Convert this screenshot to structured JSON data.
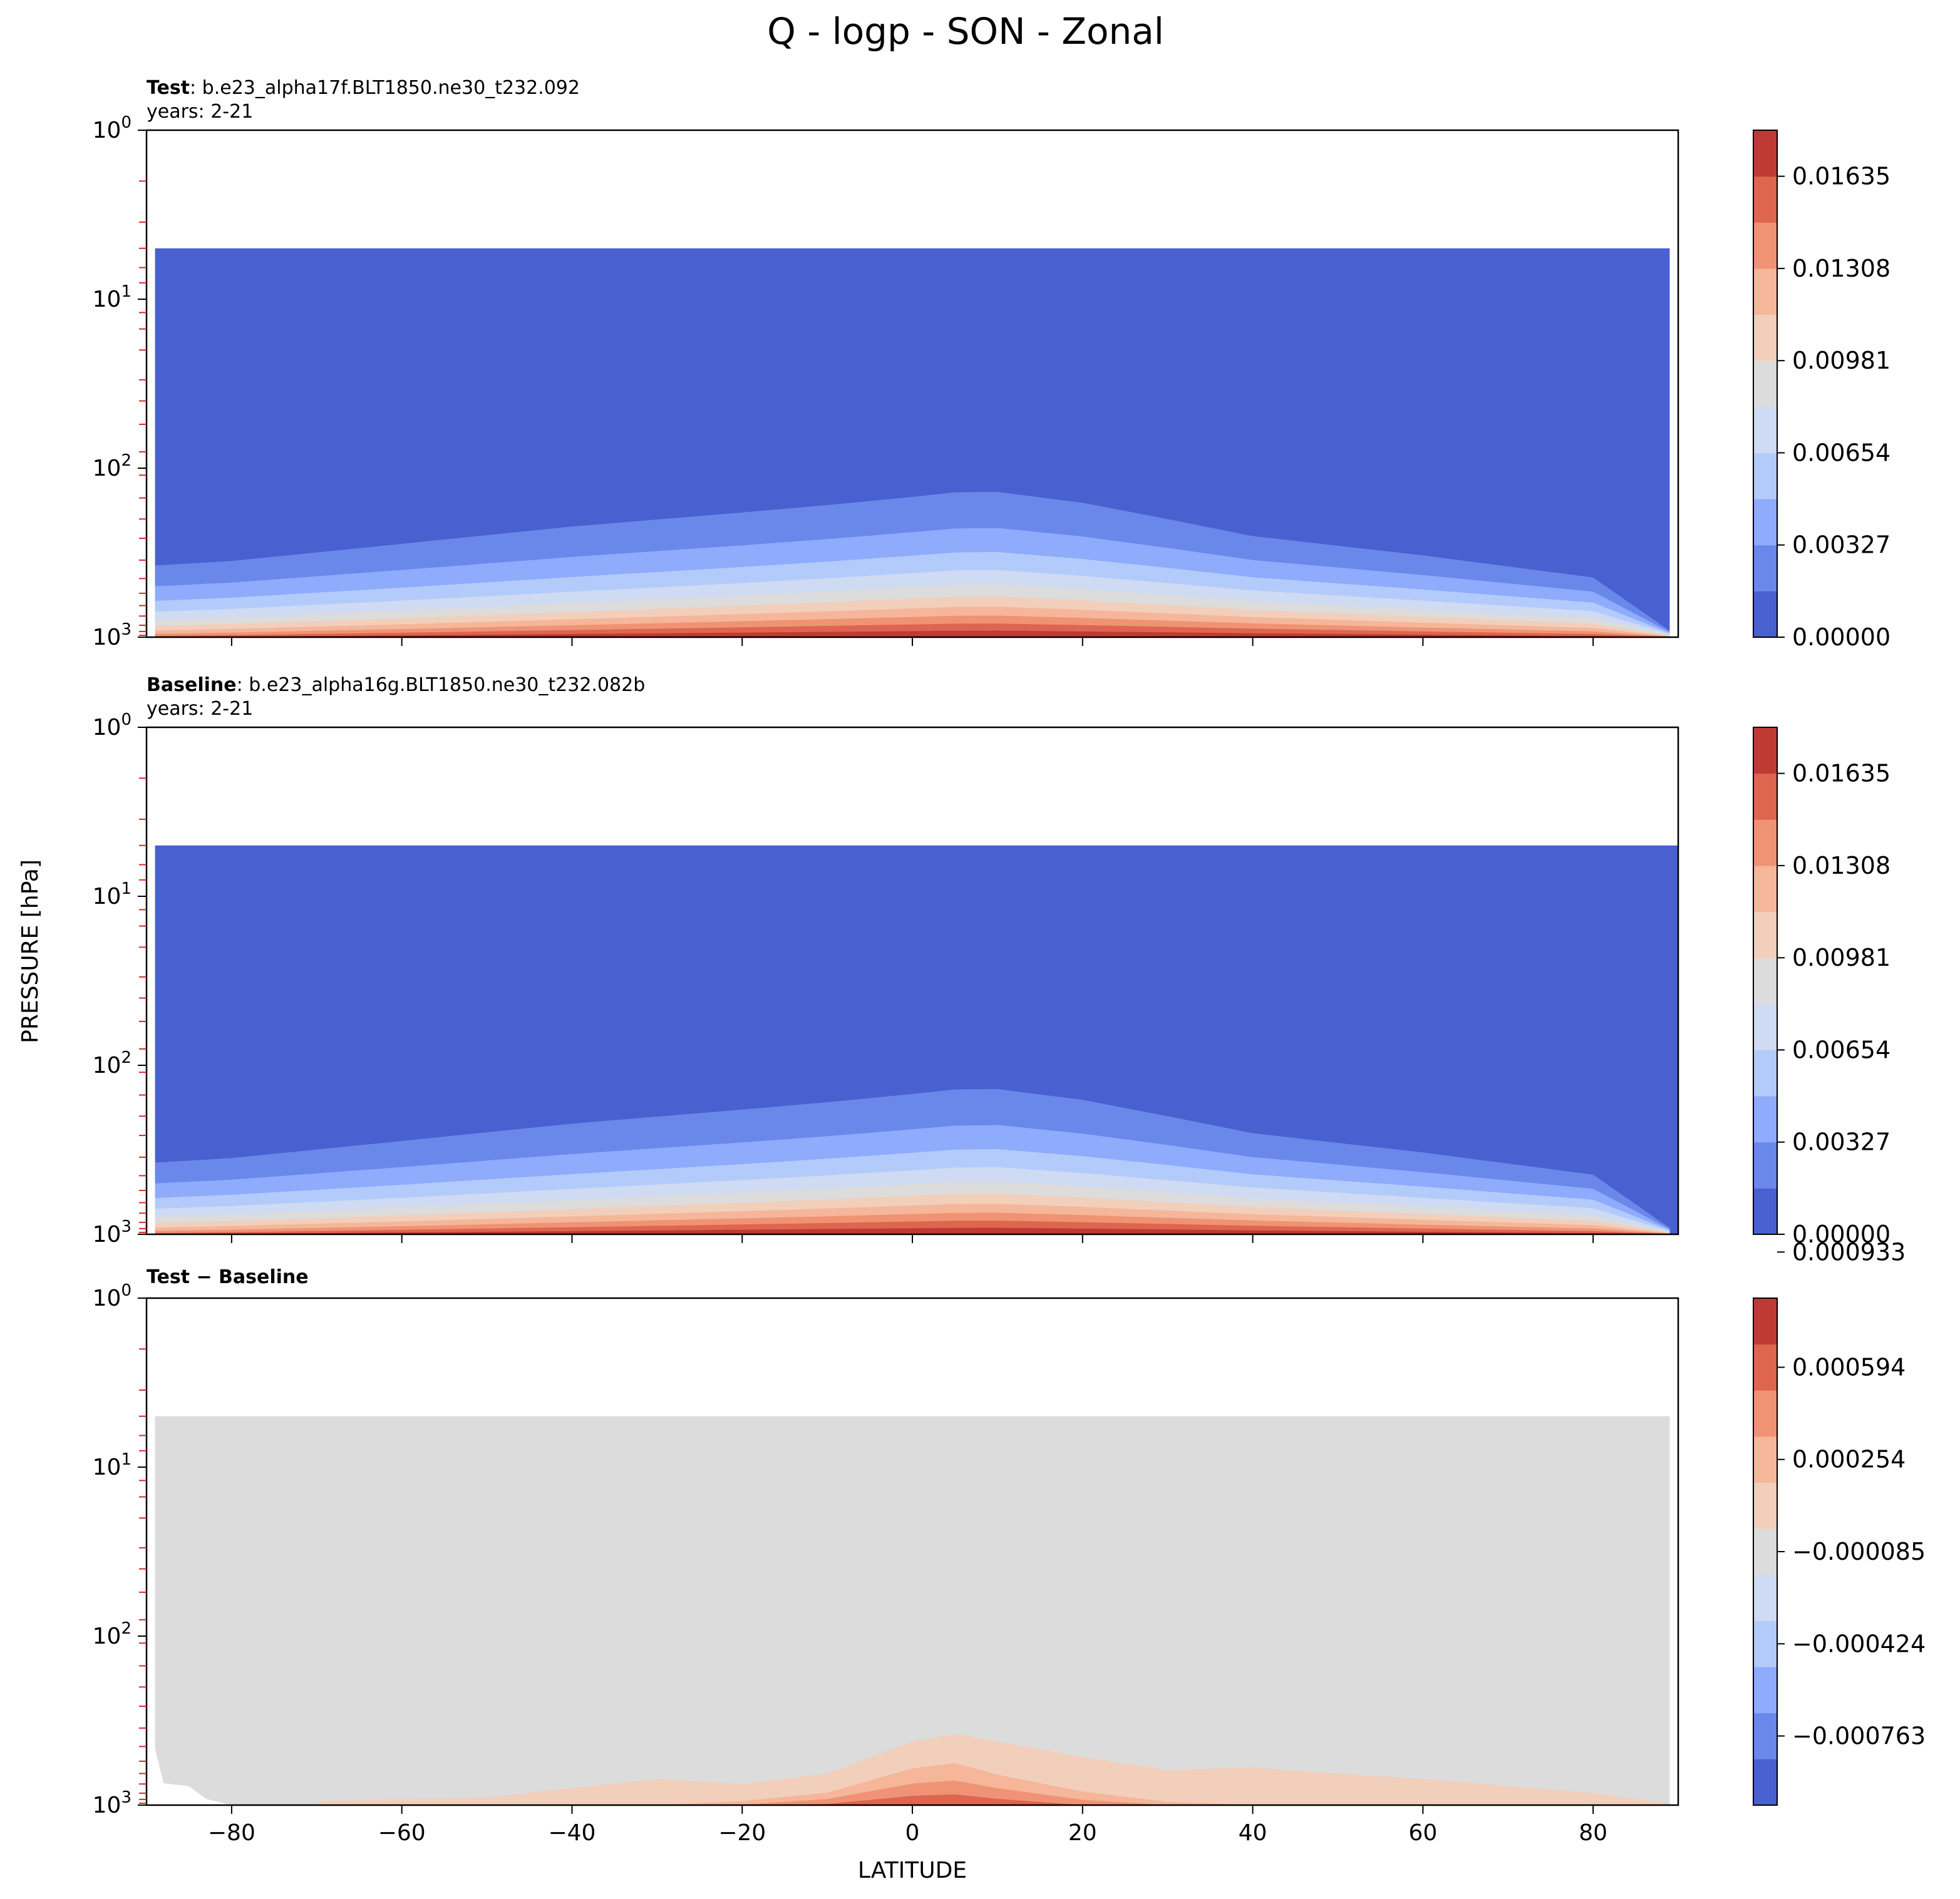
{
  "figure": {
    "title": "Q - logp - SON - Zonal",
    "ylabel": "PRESSURE [hPa]",
    "xlabel": "LATITUDE"
  },
  "chart_data": [
    {
      "type": "contour",
      "panel": "test",
      "label_bold": "Test",
      "label_rest": ": b.e23_alpha17f.BLT1850.ne30_t232.092",
      "years": "years: 2-21",
      "x": [
        -89,
        -80,
        -60,
        -40,
        -20,
        -10,
        0,
        5,
        10,
        20,
        30,
        40,
        60,
        80,
        89
      ],
      "data_top_hPa": 5,
      "contour_top_hPa": [
        240,
        220,
        150,
        100,
        75,
        65,
        55,
        50,
        50,
        65,
        100,
        150,
        220,
        340,
        900
      ],
      "xlim": [
        -90,
        90
      ],
      "ylim_hPa": [
        1000,
        1
      ],
      "y_scale": "log",
      "x_ticks": [
        -80,
        -60,
        -40,
        -20,
        0,
        20,
        40,
        60,
        80
      ],
      "y_ticks": [
        "10^0",
        "10^1",
        "10^2",
        "10^3"
      ],
      "colorbar": {
        "ticks": [
          "0.00000",
          "0.00327",
          "0.00654",
          "0.00981",
          "0.01308",
          "0.01635"
        ],
        "levels": 11,
        "colors": [
          "#4960d0",
          "#6a88e9",
          "#8eabfc",
          "#b2cbfb",
          "#cfdaf3",
          "#dcdcdc",
          "#f2cfbb",
          "#f5b69a",
          "#ef9374",
          "#de654e",
          "#c03a34"
        ]
      }
    },
    {
      "type": "contour",
      "panel": "baseline",
      "label_bold": "Baseline",
      "label_rest": ": b.e23_alpha16g.BLT1850.ne30_t232.082b",
      "years": "years: 2-21",
      "x": [
        -89,
        -80,
        -60,
        -40,
        -20,
        -10,
        0,
        5,
        10,
        20,
        30,
        40,
        60,
        80,
        89
      ],
      "data_top_hPa": 5,
      "contour_top_hPa": [
        240,
        220,
        150,
        100,
        75,
        65,
        55,
        50,
        50,
        65,
        100,
        150,
        220,
        340,
        900
      ],
      "xlim": [
        -90,
        90
      ],
      "ylim_hPa": [
        1000,
        1
      ],
      "y_scale": "log",
      "x_ticks": [
        -80,
        -60,
        -40,
        -20,
        0,
        20,
        40,
        60,
        80
      ],
      "y_ticks": [
        "10^0",
        "10^1",
        "10^2",
        "10^3"
      ],
      "colorbar": {
        "ticks": [
          "0.00000",
          "0.00327",
          "0.00654",
          "0.00981",
          "0.01308",
          "0.01635"
        ],
        "levels": 11,
        "colors": [
          "#4960d0",
          "#6a88e9",
          "#8eabfc",
          "#b2cbfb",
          "#cfdaf3",
          "#dcdcdc",
          "#f2cfbb",
          "#f5b69a",
          "#ef9374",
          "#de654e",
          "#c03a34"
        ]
      }
    },
    {
      "type": "contour",
      "panel": "difference",
      "label_bold": "Test − Baseline",
      "label_rest": "",
      "years": "",
      "x": [
        -70,
        -50,
        -30,
        -20,
        -10,
        0,
        5,
        10,
        20,
        30,
        40,
        50,
        60,
        80,
        89
      ],
      "data_top_hPa": 5,
      "anomaly_top_hPa": [
        950,
        900,
        700,
        750,
        650,
        420,
        380,
        420,
        520,
        620,
        600,
        650,
        700,
        850,
        980
      ],
      "xlim": [
        -90,
        90
      ],
      "ylim_hPa": [
        1000,
        1
      ],
      "y_scale": "log",
      "x_ticks": [
        -80,
        -60,
        -40,
        -20,
        0,
        20,
        40,
        60,
        80
      ],
      "x_tick_labels": [
        "−80",
        "−60",
        "−40",
        "−20",
        "0",
        "20",
        "40",
        "60",
        "80"
      ],
      "y_ticks": [
        "10^0",
        "10^1",
        "10^2",
        "10^3"
      ],
      "colorbar": {
        "ticks": [
          "−0.000763",
          "−0.000424",
          "−0.000085",
          "0.000254",
          "0.000594",
          "0.000933"
        ],
        "levels": 11,
        "colors": [
          "#4960d0",
          "#6a88e9",
          "#8eabfc",
          "#b2cbfb",
          "#cfdaf3",
          "#dcdcdc",
          "#f2cfbb",
          "#f5b69a",
          "#ef9374",
          "#de654e",
          "#c03a34"
        ]
      }
    }
  ]
}
